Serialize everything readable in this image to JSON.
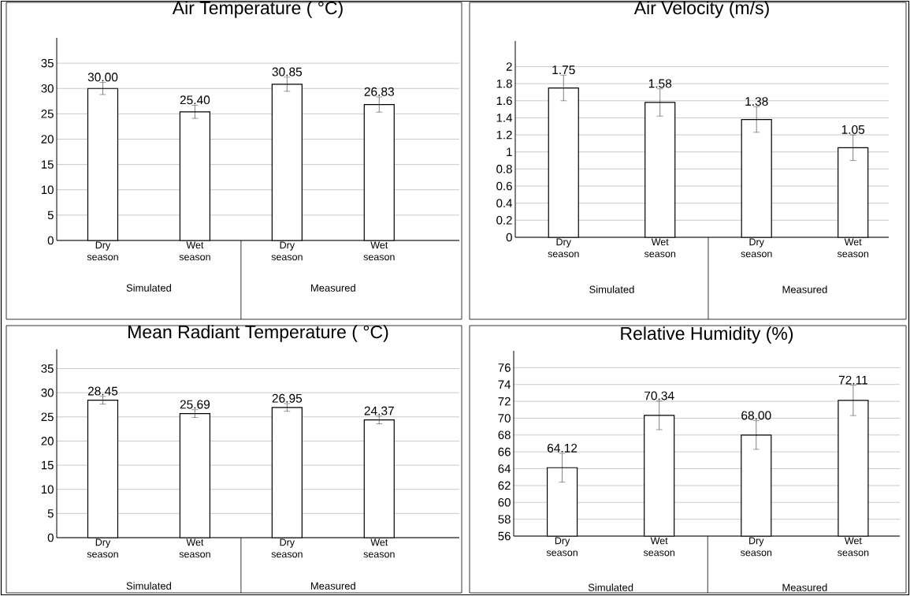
{
  "chart_data": [
    {
      "type": "bar",
      "title": "Air Temperature ( °C)",
      "categories": [
        "Dry season",
        "Wet season",
        "Dry season",
        "Wet season"
      ],
      "values": [
        30.0,
        25.4,
        30.85,
        26.83
      ],
      "errors": [
        1.2,
        1.3,
        1.4,
        1.5
      ],
      "value_labels": [
        "30.00",
        "25.40",
        "30.85",
        "26.83"
      ],
      "color": "#000000",
      "ylim": [
        0,
        40
      ],
      "yticks": [
        0,
        5,
        10,
        15,
        20,
        25,
        30,
        35
      ],
      "grid": "y",
      "annotations": [
        "Simulated",
        "Measured"
      ]
    },
    {
      "type": "bar",
      "title": "Air Velocity (m/s)",
      "categories": [
        "Dry season",
        "Wet season",
        "Dry season",
        "Wet season"
      ],
      "values": [
        1.75,
        1.58,
        1.38,
        1.05
      ],
      "errors": [
        0.15,
        0.16,
        0.15,
        0.15
      ],
      "value_labels": [
        "1.75",
        "1.58",
        "1.38",
        "1.05"
      ],
      "color": "#000000",
      "ylim": [
        0,
        2.3
      ],
      "yticks": [
        0,
        0.2,
        0.4,
        0.6,
        0.8,
        1,
        1.2,
        1.4,
        1.6,
        1.8,
        2
      ],
      "grid": "y",
      "annotations": [
        "Simulated",
        "Measured"
      ]
    },
    {
      "type": "bar",
      "title": "Mean Radiant Temperature ( °C)",
      "categories": [
        "Dry season",
        "Wet season",
        "Dry season",
        "Wet season"
      ],
      "values": [
        28.45,
        25.69,
        26.95,
        24.37
      ],
      "errors": [
        0.8,
        0.8,
        0.8,
        0.8
      ],
      "value_labels": [
        "28.45",
        "25.69",
        "26.95",
        "24.37"
      ],
      "color": "#000000",
      "ylim": [
        0,
        39
      ],
      "yticks": [
        0,
        5,
        10,
        15,
        20,
        25,
        30,
        35
      ],
      "grid": "y",
      "annotations": [
        "Simulated",
        "Measured"
      ]
    },
    {
      "type": "bar",
      "title": "Relative Humidity (%)",
      "categories": [
        "Dry season",
        "Wet season",
        "Dry season",
        "Wet season"
      ],
      "values": [
        64.12,
        70.34,
        68.0,
        72.11
      ],
      "errors": [
        1.7,
        1.7,
        1.7,
        1.8
      ],
      "value_labels": [
        "64.12",
        "70.34",
        "68.00",
        "72.11"
      ],
      "color": "#000000",
      "ylim": [
        56,
        78
      ],
      "yticks": [
        56,
        58,
        60,
        62,
        64,
        66,
        68,
        70,
        72,
        74,
        76
      ],
      "grid": "y",
      "annotations": [
        "Simulated",
        "Measured"
      ]
    }
  ]
}
